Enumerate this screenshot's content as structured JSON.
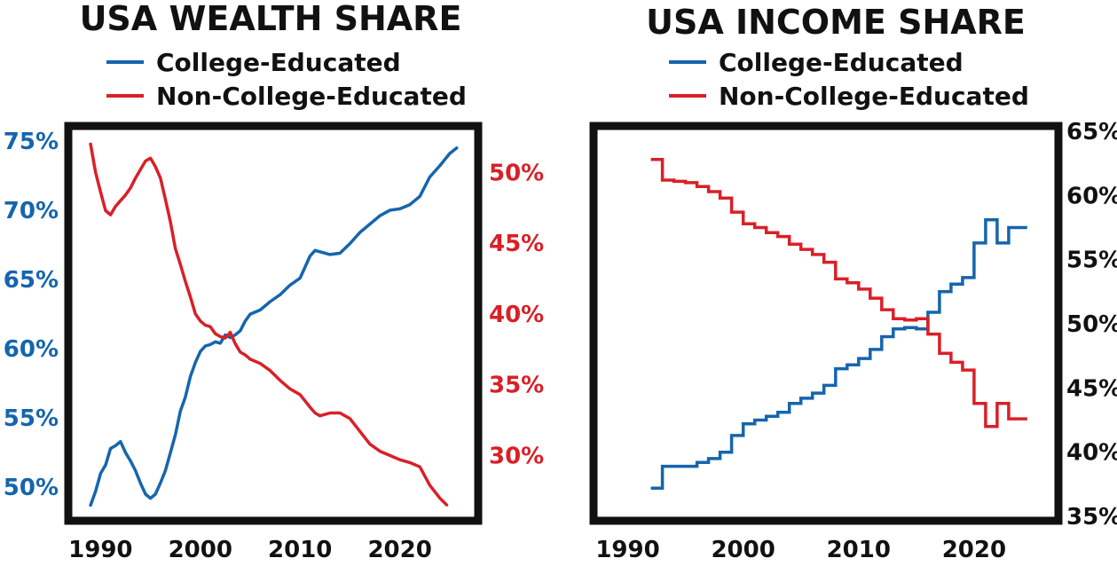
{
  "colors": {
    "blue": "#1565ad",
    "red": "#d92027",
    "frame": "#111111"
  },
  "chart_data": [
    {
      "type": "line",
      "title": "USA WEALTH SHARE",
      "legend_placement": "top",
      "grid": false,
      "x_ticks": [
        "1990",
        "2000",
        "2010",
        "2020"
      ],
      "xlim": [
        1987.3,
        2027.5
      ],
      "left_axis": {
        "ticks": [
          "50%",
          "55%",
          "60%",
          "65%",
          "70%",
          "75%"
        ],
        "ylim": [
          47.9,
          75.7
        ]
      },
      "right_axis": {
        "ticks": [
          "30%",
          "35%",
          "40%",
          "45%",
          "50%"
        ],
        "ylim": [
          25.7,
          52.9
        ]
      },
      "series": [
        {
          "name": "College-Educated",
          "color": "#1565ad",
          "axis": "left",
          "x": [
            1989.0,
            1989.5,
            1990.0,
            1990.5,
            1991.0,
            1991.5,
            1992.0,
            1992.5,
            1993.0,
            1993.5,
            1994.0,
            1994.5,
            1995.0,
            1995.5,
            1996.0,
            1996.5,
            1997.0,
            1997.5,
            1998.0,
            1998.5,
            1999.0,
            1999.5,
            2000.0,
            2000.5,
            2001.0,
            2001.5,
            2002.0,
            2002.5,
            2003.0,
            2003.5,
            2004.0,
            2004.5,
            2005.0,
            2006.0,
            2007.0,
            2008.0,
            2009.0,
            2010.0,
            2011.0,
            2011.5,
            2012.0,
            2013.0,
            2014.0,
            2015.0,
            2016.0,
            2017.0,
            2018.0,
            2019.0,
            2020.0,
            2021.0,
            2022.0,
            2023.0,
            2024.0,
            2025.0,
            2025.7
          ],
          "values": [
            48.7,
            49.7,
            51.0,
            51.6,
            52.8,
            53.0,
            53.3,
            52.5,
            51.9,
            51.2,
            50.3,
            49.5,
            49.2,
            49.5,
            50.3,
            51.2,
            52.5,
            53.8,
            55.5,
            56.5,
            58.0,
            59.0,
            59.8,
            60.2,
            60.3,
            60.5,
            60.4,
            61.0,
            60.8,
            61.0,
            61.3,
            62.0,
            62.5,
            62.8,
            63.4,
            63.9,
            64.6,
            65.1,
            66.7,
            67.1,
            67.0,
            66.8,
            66.9,
            67.6,
            68.4,
            69.0,
            69.6,
            70.0,
            70.1,
            70.4,
            71.0,
            72.4,
            73.2,
            74.1,
            74.5
          ]
        },
        {
          "name": "Non-College-Educated",
          "color": "#d92027",
          "axis": "right",
          "x": [
            1989.0,
            1989.5,
            1990.0,
            1990.5,
            1991.0,
            1991.5,
            1992.0,
            1992.5,
            1993.0,
            1993.5,
            1994.0,
            1994.5,
            1995.0,
            1995.5,
            1996.0,
            1996.5,
            1997.0,
            1997.5,
            1998.0,
            1998.5,
            1999.0,
            1999.5,
            2000.0,
            2000.5,
            2001.0,
            2001.5,
            2002.0,
            2002.5,
            2003.0,
            2003.5,
            2004.0,
            2004.5,
            2005.0,
            2006.0,
            2007.0,
            2008.0,
            2009.0,
            2010.0,
            2011.0,
            2011.5,
            2012.0,
            2013.0,
            2014.0,
            2015.0,
            2016.0,
            2017.0,
            2018.0,
            2019.0,
            2020.0,
            2021.0,
            2022.0,
            2023.0,
            2024.0,
            2024.7
          ],
          "values": [
            52.0,
            50.0,
            48.6,
            47.3,
            47.0,
            47.6,
            48.0,
            48.4,
            48.9,
            49.6,
            50.2,
            50.8,
            51.0,
            50.4,
            49.6,
            48.1,
            46.5,
            44.6,
            43.5,
            42.3,
            41.2,
            40.0,
            39.5,
            39.2,
            39.1,
            38.6,
            38.4,
            38.3,
            38.7,
            37.9,
            37.3,
            37.1,
            36.8,
            36.5,
            36.0,
            35.3,
            34.7,
            34.3,
            33.4,
            33.0,
            32.8,
            33.0,
            33.0,
            32.6,
            31.7,
            30.8,
            30.3,
            30.0,
            29.7,
            29.5,
            29.2,
            27.9,
            27.0,
            26.5
          ]
        }
      ]
    },
    {
      "type": "line",
      "title": "USA INCOME SHARE",
      "legend_placement": "top",
      "grid": false,
      "x_ticks": [
        "1990",
        "2000",
        "2010",
        "2020"
      ],
      "xlim": [
        1987.5,
        2027.0
      ],
      "right_axis": {
        "ticks": [
          "35%",
          "40%",
          "45%",
          "50%",
          "55%",
          "60%",
          "65%"
        ],
        "ylim": [
          35.0,
          65.0
        ]
      },
      "series": [
        {
          "name": "College-Educated",
          "color": "#1565ad",
          "axis": "right",
          "step": true,
          "x": [
            1992.0,
            1993.0,
            1994.0,
            1995.0,
            1996.0,
            1997.0,
            1998.0,
            1999.0,
            2000.0,
            2001.0,
            2002.0,
            2003.0,
            2004.0,
            2005.0,
            2006.0,
            2007.0,
            2008.0,
            2009.0,
            2010.0,
            2011.0,
            2012.0,
            2013.0,
            2014.0,
            2015.0,
            2016.0,
            2017.0,
            2018.0,
            2019.0,
            2020.0,
            2021.0,
            2022.0,
            2023.0,
            2024.0
          ],
          "values": [
            37.2,
            38.9,
            38.9,
            38.9,
            39.2,
            39.5,
            40.0,
            41.3,
            42.2,
            42.5,
            42.8,
            43.1,
            43.8,
            44.2,
            44.6,
            45.2,
            46.5,
            46.8,
            47.3,
            48.0,
            49.0,
            49.6,
            49.7,
            49.6,
            50.9,
            52.5,
            53.1,
            53.6,
            56.3,
            58.1,
            56.3,
            57.5,
            57.5
          ]
        },
        {
          "name": "Non-College-Educated",
          "color": "#d92027",
          "axis": "right",
          "step": true,
          "x": [
            1992.0,
            1993.0,
            1994.0,
            1995.0,
            1996.0,
            1997.0,
            1998.0,
            1999.0,
            2000.0,
            2001.0,
            2002.0,
            2003.0,
            2004.0,
            2005.0,
            2006.0,
            2007.0,
            2008.0,
            2009.0,
            2010.0,
            2011.0,
            2012.0,
            2013.0,
            2014.0,
            2015.0,
            2016.0,
            2017.0,
            2018.0,
            2019.0,
            2020.0,
            2021.0,
            2022.0,
            2023.0,
            2024.0
          ],
          "values": [
            62.8,
            61.2,
            61.1,
            61.0,
            60.7,
            60.3,
            59.8,
            58.7,
            57.8,
            57.5,
            57.1,
            56.8,
            56.2,
            55.8,
            55.4,
            54.8,
            53.5,
            53.2,
            52.7,
            52.0,
            51.1,
            50.4,
            50.3,
            50.4,
            49.2,
            47.7,
            47.0,
            46.4,
            43.8,
            42.0,
            43.8,
            42.6,
            42.6
          ]
        }
      ]
    }
  ]
}
